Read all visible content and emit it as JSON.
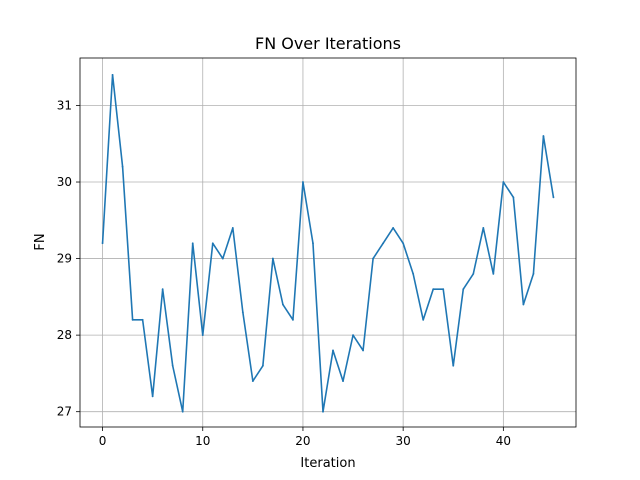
{
  "chart_data": {
    "type": "line",
    "title": "FN Over Iterations",
    "xlabel": "Iteration",
    "ylabel": "FN",
    "xlim": [
      -2.25,
      47.25
    ],
    "ylim": [
      26.8,
      31.62
    ],
    "xticks": [
      0,
      10,
      20,
      30,
      40
    ],
    "yticks": [
      27,
      28,
      29,
      30,
      31
    ],
    "grid": true,
    "line_color": "#1f77b4",
    "series": [
      {
        "x": [
          0,
          1,
          2,
          3,
          4,
          5,
          6,
          7,
          8,
          9,
          10,
          11,
          12,
          13,
          14,
          15,
          16,
          17,
          18,
          19,
          20,
          21,
          22,
          23,
          24,
          25,
          26,
          27,
          28,
          29,
          30,
          31,
          32,
          33,
          34,
          35,
          36,
          37,
          38,
          39,
          40,
          41,
          42,
          43,
          44,
          45
        ],
        "values": [
          29.2,
          31.4,
          30.2,
          28.2,
          28.2,
          27.2,
          28.6,
          27.6,
          27.0,
          29.2,
          28.0,
          29.2,
          29.0,
          29.4,
          28.3,
          27.4,
          27.6,
          29.0,
          28.4,
          28.2,
          30.0,
          29.2,
          27.0,
          27.8,
          27.4,
          28.0,
          27.8,
          29.0,
          29.2,
          29.4,
          29.2,
          28.8,
          28.2,
          28.6,
          28.6,
          27.6,
          28.6,
          28.8,
          29.4,
          28.8,
          30.0,
          29.8,
          28.4,
          28.8,
          30.6,
          29.8
        ]
      }
    ]
  }
}
